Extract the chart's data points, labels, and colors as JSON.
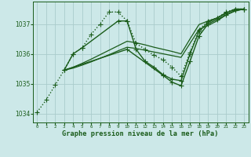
{
  "background_color": "#cce8e8",
  "grid_color": "#aacccc",
  "line_color": "#1a5c1a",
  "title": "Graphe pression niveau de la mer (hPa)",
  "xlim": [
    -0.5,
    23.5
  ],
  "ylim": [
    1033.7,
    1037.75
  ],
  "yticks": [
    1034,
    1035,
    1036,
    1037
  ],
  "xticks": [
    0,
    1,
    2,
    3,
    4,
    5,
    6,
    7,
    8,
    9,
    10,
    11,
    12,
    13,
    14,
    15,
    16,
    17,
    18,
    19,
    20,
    21,
    22,
    23
  ],
  "series": [
    {
      "x": [
        0,
        1,
        2,
        3,
        4,
        5,
        6,
        7,
        8,
        9,
        10,
        11,
        12,
        13,
        14,
        15,
        16,
        17,
        18,
        19,
        20,
        21,
        22,
        23
      ],
      "y": [
        1034.05,
        1034.45,
        1034.95,
        1035.45,
        1036.0,
        1036.2,
        1036.65,
        1037.0,
        1037.4,
        1037.4,
        1037.1,
        1036.35,
        1036.15,
        1035.95,
        1035.8,
        1035.55,
        1035.25,
        1036.05,
        1036.8,
        1037.1,
        1037.2,
        1037.4,
        1037.5,
        1037.5
      ],
      "linestyle": "dotted",
      "marker": "+",
      "lw": 1.0,
      "ms": 4
    },
    {
      "x": [
        3,
        4,
        5,
        9,
        10,
        11,
        12,
        13,
        14,
        15,
        16,
        17,
        18,
        19,
        20,
        21,
        22,
        23
      ],
      "y": [
        1035.45,
        1036.0,
        1036.2,
        1037.1,
        1037.1,
        1036.15,
        1035.75,
        1035.55,
        1035.3,
        1035.15,
        1035.1,
        1036.0,
        1036.75,
        1037.05,
        1037.2,
        1037.35,
        1037.5,
        1037.5
      ],
      "linestyle": "solid",
      "marker": "+",
      "lw": 1.0,
      "ms": 4
    },
    {
      "x": [
        3,
        4,
        5,
        6,
        7,
        8,
        9,
        10,
        11,
        12,
        13,
        14,
        15,
        16,
        17,
        18,
        19,
        20,
        21,
        22,
        23
      ],
      "y": [
        1035.45,
        1035.55,
        1035.68,
        1035.82,
        1035.97,
        1036.12,
        1036.27,
        1036.42,
        1036.37,
        1036.3,
        1036.22,
        1036.15,
        1036.08,
        1036.0,
        1036.5,
        1036.98,
        1037.1,
        1037.2,
        1037.38,
        1037.48,
        1037.5
      ],
      "linestyle": "solid",
      "marker": null,
      "lw": 0.9,
      "ms": 0
    },
    {
      "x": [
        3,
        4,
        5,
        6,
        7,
        8,
        9,
        10,
        11,
        12,
        13,
        14,
        15,
        16,
        17,
        18,
        19,
        20,
        21,
        22,
        23
      ],
      "y": [
        1035.45,
        1035.52,
        1035.62,
        1035.73,
        1035.85,
        1035.97,
        1036.1,
        1036.22,
        1036.18,
        1036.12,
        1036.06,
        1036.0,
        1035.94,
        1035.88,
        1036.35,
        1036.82,
        1036.95,
        1037.1,
        1037.3,
        1037.43,
        1037.5
      ],
      "linestyle": "solid",
      "marker": null,
      "lw": 0.9,
      "ms": 0
    },
    {
      "x": [
        3,
        10,
        14,
        15,
        16,
        17,
        18,
        19,
        20,
        21,
        22,
        23
      ],
      "y": [
        1035.45,
        1036.15,
        1035.28,
        1035.05,
        1034.93,
        1035.75,
        1036.6,
        1037.0,
        1037.15,
        1037.3,
        1037.45,
        1037.5
      ],
      "linestyle": "solid",
      "marker": "+",
      "lw": 1.0,
      "ms": 4
    }
  ]
}
